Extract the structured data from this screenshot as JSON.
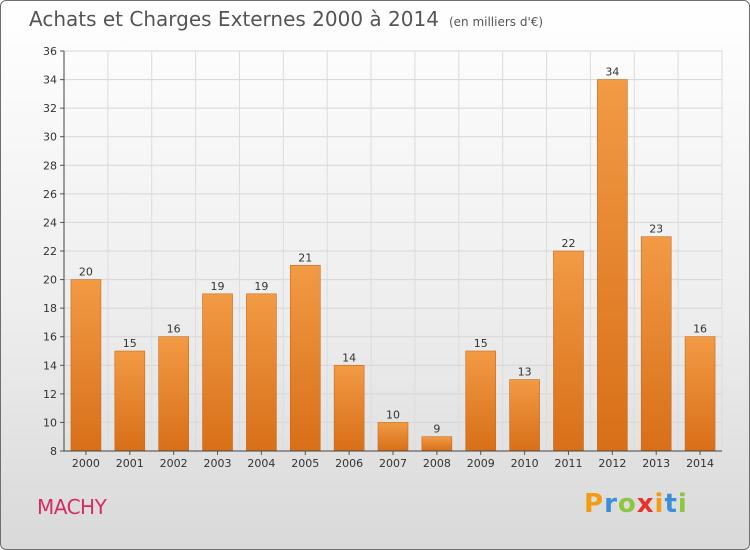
{
  "header": {
    "title": "Achats et Charges Externes 2000 à 2014",
    "subtitle": "(en milliers d'€)"
  },
  "footer": {
    "town": "MACHY",
    "brand": "Proxiti",
    "brand_colors": [
      "#f39c12",
      "#3a8fd6",
      "#8dc63f",
      "#e8332a",
      "#f39c12",
      "#3a8fd6",
      "#8dc63f"
    ]
  },
  "chart_data": {
    "type": "bar",
    "title": "Achats et Charges Externes 2000 à 2014",
    "subtitle": "(en milliers d'€)",
    "categories": [
      "2000",
      "2001",
      "2002",
      "2003",
      "2004",
      "2005",
      "2006",
      "2007",
      "2008",
      "2009",
      "2010",
      "2011",
      "2012",
      "2013",
      "2014"
    ],
    "values": [
      20,
      15,
      16,
      19,
      19,
      21,
      14,
      10,
      9,
      15,
      13,
      22,
      34,
      23,
      16
    ],
    "ylim": [
      8,
      36
    ],
    "yticks": [
      8,
      10,
      12,
      14,
      16,
      18,
      20,
      22,
      24,
      26,
      28,
      30,
      32,
      34,
      36
    ],
    "grid": true,
    "bar_color": "#f29a45",
    "bar_color_dark": "#d86f18"
  }
}
